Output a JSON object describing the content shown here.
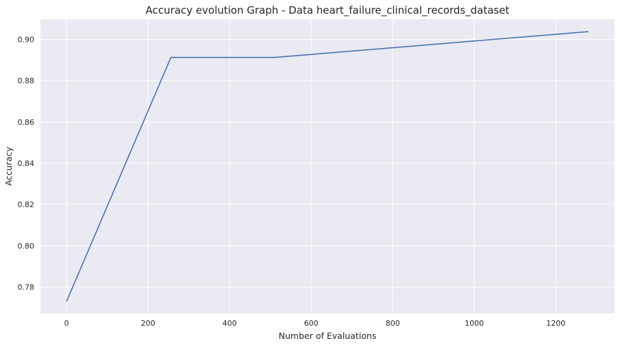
{
  "colors": {
    "background": "#ffffff",
    "plot_background": "#eaeaf2",
    "grid": "#ffffff",
    "line": "#4c72b0",
    "text": "#262626"
  },
  "chart_data": {
    "type": "line",
    "title": "Accuracy evolution Graph - Data heart_failure_clinical_records_dataset",
    "xlabel": "Number of Evaluations",
    "ylabel": "Accuracy",
    "xlim": [
      -64,
      1344
    ],
    "ylim": [
      0.7672,
      0.9098
    ],
    "grid": true,
    "legend": "none",
    "x_ticks": [
      0,
      200,
      400,
      600,
      800,
      1000,
      1200
    ],
    "x_tick_labels": [
      "0",
      "200",
      "400",
      "600",
      "800",
      "1000",
      "1200"
    ],
    "y_ticks": [
      0.78,
      0.8,
      0.82,
      0.84,
      0.86,
      0.88,
      0.9
    ],
    "y_tick_labels": [
      "0.78",
      "0.80",
      "0.82",
      "0.84",
      "0.86",
      "0.88",
      "0.90"
    ],
    "series": [
      {
        "x": [
          0,
          256,
          512,
          1280
        ],
        "y": [
          0.773,
          0.8913,
          0.8913,
          0.9038
        ]
      }
    ]
  }
}
